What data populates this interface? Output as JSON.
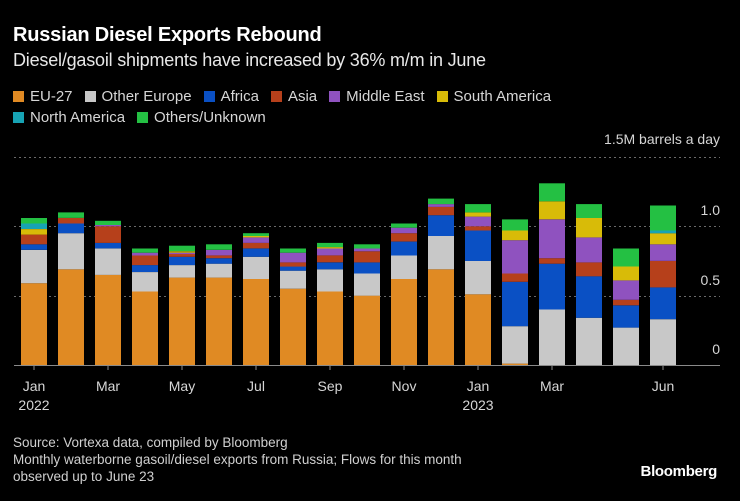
{
  "header": {
    "title": "Russian Diesel Exports Rebound",
    "subtitle": "Diesel/gasoil shipments have increased by 36% m/m in June"
  },
  "footer": {
    "source": "Source: Vortexa data, compiled by Bloomberg",
    "note_line1": "Monthly waterborne gasoil/diesel exports from Russia; Flows for this month",
    "note_line2": "observed up to June 23",
    "brand": "Bloomberg"
  },
  "chart_data": {
    "type": "bar",
    "stacked": true,
    "title": "Russian Diesel Exports Rebound",
    "subtitle": "Diesel/gasoil shipments have increased by 36% m/m in June",
    "ylabel": "1.5M barrels a day",
    "ylim": [
      0,
      1.5
    ],
    "yticks": [
      {
        "value": 0,
        "label": "0"
      },
      {
        "value": 0.5,
        "label": "0.5"
      },
      {
        "value": 1.0,
        "label": "1.0"
      },
      {
        "value": 1.5,
        "label": ""
      }
    ],
    "grid": true,
    "legend_position": "top-left",
    "categories": [
      "Jan 2022",
      "Feb 2022",
      "Mar 2022",
      "Apr 2022",
      "May 2022",
      "Jun 2022",
      "Jul 2022",
      "Aug 2022",
      "Sep 2022",
      "Oct 2022",
      "Nov 2022",
      "Dec 2022",
      "Jan 2023",
      "Feb 2023",
      "Mar 2023",
      "Apr 2023",
      "May 2023",
      "Jun 2023"
    ],
    "xtick_labels": [
      {
        "index": 0,
        "line1": "Jan",
        "line2": "2022"
      },
      {
        "index": 2,
        "line1": "Mar",
        "line2": ""
      },
      {
        "index": 4,
        "line1": "May",
        "line2": ""
      },
      {
        "index": 6,
        "line1": "Jul",
        "line2": ""
      },
      {
        "index": 8,
        "line1": "Sep",
        "line2": ""
      },
      {
        "index": 10,
        "line1": "Nov",
        "line2": ""
      },
      {
        "index": 12,
        "line1": "Jan",
        "line2": "2023"
      },
      {
        "index": 14,
        "line1": "Mar",
        "line2": ""
      },
      {
        "index": 17,
        "line1": "Jun",
        "line2": ""
      }
    ],
    "series": [
      {
        "name": "EU-27",
        "color": "#e08a23",
        "values": [
          0.59,
          0.69,
          0.65,
          0.53,
          0.63,
          0.63,
          0.62,
          0.55,
          0.53,
          0.5,
          0.62,
          0.69,
          0.51,
          0.01,
          0,
          0,
          0,
          0
        ]
      },
      {
        "name": "Other Europe",
        "color": "#c8c8c8",
        "values": [
          0.24,
          0.26,
          0.19,
          0.14,
          0.09,
          0.1,
          0.16,
          0.13,
          0.16,
          0.16,
          0.17,
          0.24,
          0.24,
          0.27,
          0.4,
          0.34,
          0.27,
          0.33
        ]
      },
      {
        "name": "Africa",
        "color": "#0a50c4",
        "values": [
          0.04,
          0.07,
          0.04,
          0.05,
          0.06,
          0.04,
          0.06,
          0.03,
          0.05,
          0.08,
          0.1,
          0.15,
          0.22,
          0.32,
          0.33,
          0.3,
          0.16,
          0.23
        ]
      },
      {
        "name": "Asia",
        "color": "#b6401b",
        "values": [
          0.07,
          0.04,
          0.12,
          0.07,
          0.02,
          0.02,
          0.04,
          0.03,
          0.05,
          0.08,
          0.06,
          0.06,
          0.03,
          0.06,
          0.04,
          0.1,
          0.04,
          0.19
        ]
      },
      {
        "name": "Middle East",
        "color": "#8f52bf",
        "values": [
          0,
          0,
          0.01,
          0.02,
          0.01,
          0.04,
          0.04,
          0.07,
          0.05,
          0.02,
          0.04,
          0.02,
          0.07,
          0.24,
          0.28,
          0.18,
          0.14,
          0.12
        ]
      },
      {
        "name": "South America",
        "color": "#d8bb08",
        "values": [
          0.04,
          0,
          0,
          0,
          0.01,
          0,
          0.01,
          0,
          0.01,
          0,
          0,
          0,
          0.03,
          0.07,
          0.13,
          0.14,
          0.1,
          0.08
        ]
      },
      {
        "name": "North America",
        "color": "#17a3b4",
        "values": [
          0.04,
          0,
          0,
          0,
          0,
          0,
          0,
          0,
          0,
          0,
          0,
          0,
          0,
          0,
          0,
          0,
          0,
          0.02
        ]
      },
      {
        "name": "Others/Unknown",
        "color": "#24c043",
        "values": [
          0.04,
          0.04,
          0.03,
          0.03,
          0.04,
          0.04,
          0.02,
          0.03,
          0.03,
          0.03,
          0.03,
          0.04,
          0.06,
          0.08,
          0.13,
          0.1,
          0.13,
          0.18
        ]
      }
    ]
  }
}
